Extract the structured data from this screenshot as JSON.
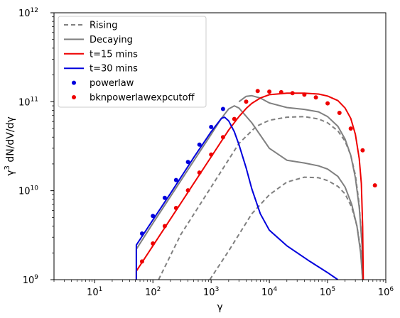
{
  "chart_data": {
    "type": "line",
    "xlabel": "γ",
    "ylabel": "γ³ dN/dV/dγ",
    "x_scale": "log",
    "y_scale": "log",
    "xlim": [
      2,
      1000000
    ],
    "ylim": [
      1000000000,
      1000000000000
    ],
    "grid": false,
    "legend_placement": "top-left",
    "x_ticks": [
      {
        "value": 10,
        "base": "10",
        "exp": "1"
      },
      {
        "value": 100,
        "base": "10",
        "exp": "2"
      },
      {
        "value": 1000,
        "base": "10",
        "exp": "3"
      },
      {
        "value": 10000,
        "base": "10",
        "exp": "4"
      },
      {
        "value": 100000,
        "base": "10",
        "exp": "5"
      },
      {
        "value": 1000000,
        "base": "10",
        "exp": "6"
      }
    ],
    "y_ticks": [
      {
        "value": 1000000000,
        "base": "10",
        "exp": "9"
      },
      {
        "value": 10000000000,
        "base": "10",
        "exp": "10"
      },
      {
        "value": 100000000000,
        "base": "10",
        "exp": "11"
      },
      {
        "value": 1000000000000,
        "base": "10",
        "exp": "12"
      }
    ],
    "legend": [
      {
        "label": "Rising",
        "kind": "line",
        "color": "#808080",
        "dash": true
      },
      {
        "label": "Decaying",
        "kind": "line",
        "color": "#808080",
        "dash": false
      },
      {
        "label": "t=15 mins",
        "kind": "line",
        "color": "#ee0000",
        "dash": false
      },
      {
        "label": "t=30 mins",
        "kind": "line",
        "color": "#0000dd",
        "dash": false
      },
      {
        "label": "powerlaw",
        "kind": "dot",
        "color": "#0000dd"
      },
      {
        "label": "bknpowerlawexpcutoff",
        "kind": "dot",
        "color": "#ee0000"
      }
    ],
    "series": [
      {
        "name": "Rising",
        "style": "dashed",
        "color": "#808080",
        "points": [
          [
            125,
            1000000000.0
          ],
          [
            300,
            3200000000.0
          ],
          [
            1000,
            11000000000.0
          ],
          [
            3000,
            34000000000.0
          ],
          [
            6000,
            53000000000.0
          ],
          [
            10000,
            62000000000.0
          ],
          [
            20000,
            67000000000.0
          ],
          [
            40000,
            68000000000.0
          ],
          [
            70000,
            64000000000.0
          ],
          [
            100000,
            58000000000.0
          ],
          [
            150000,
            47000000000.0
          ],
          [
            200000,
            36000000000.0
          ],
          [
            250000,
            25000000000.0
          ],
          [
            300000,
            15000000000.0
          ],
          [
            350000,
            7000000000.0
          ],
          [
            390000,
            2500000000.0
          ],
          [
            400000,
            1000000000.0
          ]
        ]
      },
      {
        "name": "Rising",
        "style": "dashed",
        "color": "#808080",
        "points": [
          [
            950,
            1000000000.0
          ],
          [
            2000,
            2100000000.0
          ],
          [
            5000,
            5500000000.0
          ],
          [
            10000,
            9000000000.0
          ],
          [
            20000,
            12500000000.0
          ],
          [
            40000,
            14200000000.0
          ],
          [
            70000,
            14000000000.0
          ],
          [
            100000,
            13000000000.0
          ],
          [
            150000,
            11200000000.0
          ],
          [
            200000,
            9200000000.0
          ],
          [
            260000,
            6500000000.0
          ],
          [
            320000,
            4000000000.0
          ],
          [
            370000,
            2200000000.0
          ],
          [
            400000,
            1000000000.0
          ]
        ]
      },
      {
        "name": "Decaying",
        "style": "solid",
        "color": "#808080",
        "points": [
          [
            52,
            1000000000.0
          ],
          [
            52,
            2200000000.0
          ],
          [
            100,
            4300000000.0
          ],
          [
            200,
            8600000000.0
          ],
          [
            500,
            21500000000.0
          ],
          [
            1000,
            43000000000.0
          ],
          [
            1500,
            65000000000.0
          ],
          [
            2000,
            83000000000.0
          ],
          [
            2500,
            90000000000.0
          ],
          [
            3000,
            85000000000.0
          ],
          [
            5000,
            58000000000.0
          ],
          [
            10000,
            30000000000.0
          ],
          [
            20000,
            22000000000.0
          ],
          [
            40000,
            20500000000.0
          ],
          [
            70000,
            19000000000.0
          ],
          [
            100000,
            17500000000.0
          ],
          [
            150000,
            14500000000.0
          ],
          [
            200000,
            11000000000.0
          ],
          [
            260000,
            7000000000.0
          ],
          [
            320000,
            4000000000.0
          ],
          [
            370000,
            2000000000.0
          ],
          [
            400000,
            1000000000.0
          ]
        ]
      },
      {
        "name": "Decaying",
        "style": "solid",
        "color": "#808080",
        "points": [
          [
            3000,
            100000000000.0
          ],
          [
            4000,
            115000000000.0
          ],
          [
            5000,
            117000000000.0
          ],
          [
            7000,
            110000000000.0
          ],
          [
            10000,
            97000000000.0
          ],
          [
            20000,
            86000000000.0
          ],
          [
            40000,
            82000000000.0
          ],
          [
            70000,
            77000000000.0
          ],
          [
            100000,
            68000000000.0
          ],
          [
            150000,
            53000000000.0
          ],
          [
            200000,
            38000000000.0
          ],
          [
            250000,
            25000000000.0
          ],
          [
            300000,
            14000000000.0
          ],
          [
            350000,
            6500000000.0
          ],
          [
            390000,
            2500000000.0
          ],
          [
            400000,
            1000000000.0
          ]
        ]
      },
      {
        "name": "t=15 mins",
        "style": "solid",
        "color": "#ee0000",
        "points": [
          [
            52,
            1000000000.0
          ],
          [
            52,
            1250000000.0
          ],
          [
            100,
            2400000000.0
          ],
          [
            200,
            4800000000.0
          ],
          [
            500,
            12000000000.0
          ],
          [
            1000,
            24000000000.0
          ],
          [
            2000,
            48000000000.0
          ],
          [
            3000,
            68000000000.0
          ],
          [
            4000,
            84000000000.0
          ],
          [
            5000,
            96000000000.0
          ],
          [
            7000,
            110000000000.0
          ],
          [
            10000,
            120000000000.0
          ],
          [
            20000,
            125000000000.0
          ],
          [
            40000,
            125000000000.0
          ],
          [
            70000,
            122000000000.0
          ],
          [
            100000,
            116000000000.0
          ],
          [
            150000,
            103000000000.0
          ],
          [
            200000,
            85000000000.0
          ],
          [
            250000,
            65000000000.0
          ],
          [
            300000,
            43000000000.0
          ],
          [
            350000,
            23000000000.0
          ],
          [
            380000,
            12000000000.0
          ],
          [
            400000,
            4000000000.0
          ],
          [
            410000,
            1000000000.0
          ]
        ]
      },
      {
        "name": "t=30 mins",
        "style": "solid",
        "color": "#0000dd",
        "points": [
          [
            52,
            1000000000.0
          ],
          [
            52,
            2450000000.0
          ],
          [
            100,
            4700000000.0
          ],
          [
            200,
            9300000000.0
          ],
          [
            500,
            23500000000.0
          ],
          [
            1000,
            46000000000.0
          ],
          [
            1500,
            65000000000.0
          ],
          [
            1700,
            67000000000.0
          ],
          [
            2000,
            61000000000.0
          ],
          [
            2500,
            46000000000.0
          ],
          [
            3000,
            33000000000.0
          ],
          [
            4000,
            18000000000.0
          ],
          [
            5000,
            10500000000.0
          ],
          [
            7000,
            5500000000.0
          ],
          [
            10000,
            3600000000.0
          ],
          [
            20000,
            2400000000.0
          ],
          [
            50000,
            1600000000.0
          ],
          [
            100000,
            1200000000.0
          ],
          [
            150000,
            1000000000.0
          ]
        ]
      }
    ],
    "markers": [
      {
        "name": "powerlaw",
        "color": "#0000dd",
        "points": [
          [
            65,
            3300000000.0
          ],
          [
            100,
            5200000000.0
          ],
          [
            160,
            8300000000.0
          ],
          [
            250,
            13200000000.0
          ],
          [
            400,
            21000000000.0
          ],
          [
            630,
            33000000000.0
          ],
          [
            1000,
            52000000000.0
          ],
          [
            1600,
            83000000000.0
          ]
        ]
      },
      {
        "name": "bknpowerlawexpcutoff",
        "color": "#ee0000",
        "points": [
          [
            65,
            1600000000.0
          ],
          [
            100,
            2550000000.0
          ],
          [
            160,
            4000000000.0
          ],
          [
            250,
            6400000000.0
          ],
          [
            400,
            10100000000.0
          ],
          [
            630,
            16000000000.0
          ],
          [
            1000,
            25500000000.0
          ],
          [
            1600,
            40000000000.0
          ],
          [
            2500,
            64000000000.0
          ],
          [
            4000,
            100000000000.0
          ],
          [
            6300,
            132000000000.0
          ],
          [
            10000,
            130000000000.0
          ],
          [
            16000,
            128000000000.0
          ],
          [
            25000,
            125000000000.0
          ],
          [
            40000,
            120000000000.0
          ],
          [
            63000,
            112000000000.0
          ],
          [
            100000,
            96000000000.0
          ],
          [
            160000,
            75000000000.0
          ],
          [
            250000,
            50000000000.0
          ],
          [
            400000,
            28500000000.0
          ],
          [
            650000,
            11500000000.0
          ]
        ]
      }
    ]
  }
}
